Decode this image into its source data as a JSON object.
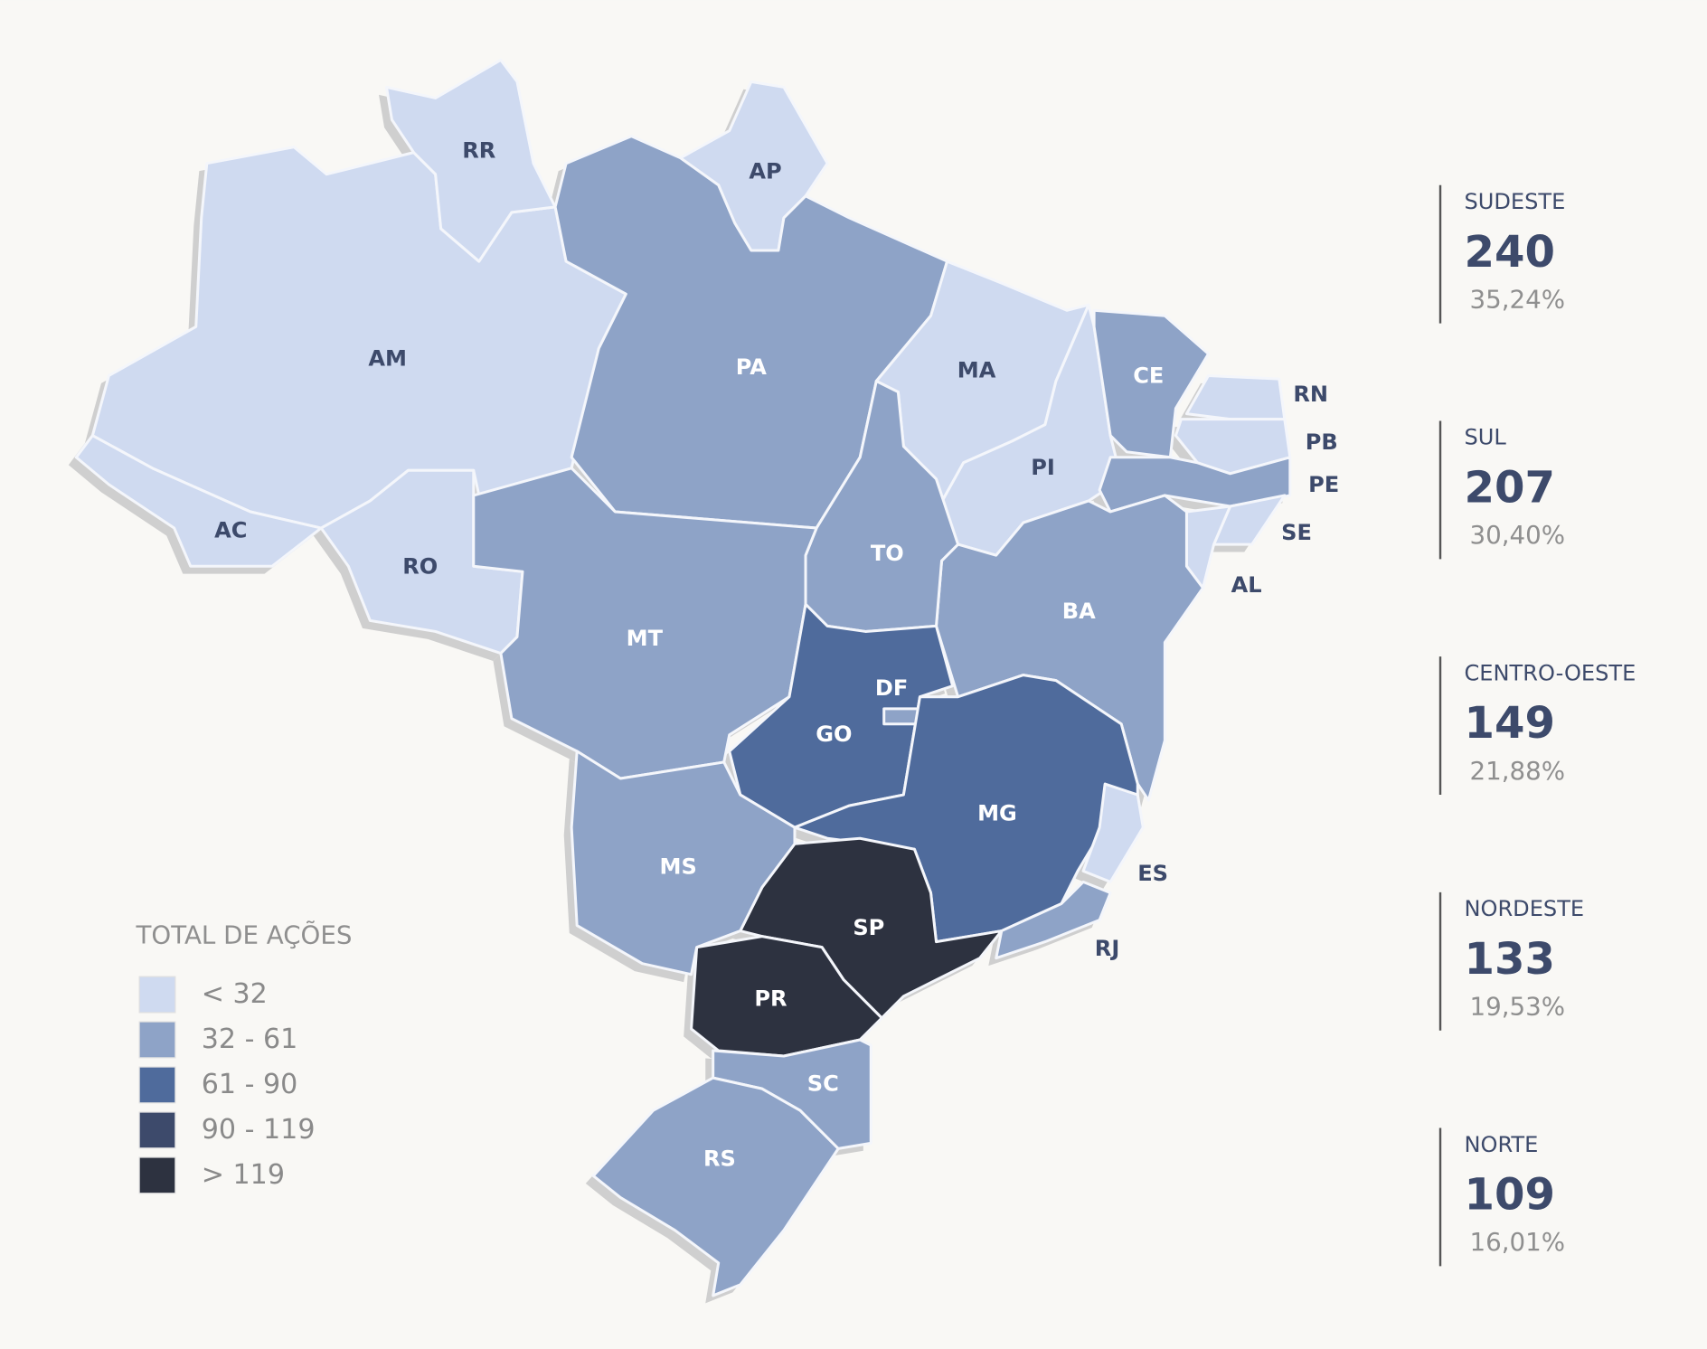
{
  "legend": {
    "title": "TOTAL DE AÇÕES",
    "items": [
      {
        "label": "< 32",
        "color": "#cfdaf0"
      },
      {
        "label": "32 - 61",
        "color": "#8ea3c7"
      },
      {
        "label": "61 - 90",
        "color": "#4f6b9c"
      },
      {
        "label": "90 - 119",
        "color": "#3d4a6b"
      },
      {
        "label": "> 119",
        "color": "#2d3240"
      }
    ]
  },
  "states": [
    {
      "label": "AM",
      "color": "#cfdaf0"
    },
    {
      "label": "AC",
      "color": "#cfdaf0"
    },
    {
      "label": "RO",
      "color": "#cfdaf0"
    },
    {
      "label": "RR",
      "color": "#cfdaf0"
    },
    {
      "label": "AP",
      "color": "#cfdaf0"
    },
    {
      "label": "PA",
      "color": "#8ea3c7"
    },
    {
      "label": "MA",
      "color": "#cfdaf0"
    },
    {
      "label": "PI",
      "color": "#cfdaf0"
    },
    {
      "label": "CE",
      "color": "#8ea3c7"
    },
    {
      "label": "RN",
      "color": "#cfdaf0"
    },
    {
      "label": "PB",
      "color": "#cfdaf0"
    },
    {
      "label": "PE",
      "color": "#8ea3c7"
    },
    {
      "label": "AL",
      "color": "#cfdaf0"
    },
    {
      "label": "SE",
      "color": "#cfdaf0"
    },
    {
      "label": "BA",
      "color": "#8ea3c7"
    },
    {
      "label": "TO",
      "color": "#8ea3c7"
    },
    {
      "label": "MT",
      "color": "#8ea3c7"
    },
    {
      "label": "GO",
      "color": "#4f6b9c"
    },
    {
      "label": "DF",
      "color": "#8ea3c7"
    },
    {
      "label": "MG",
      "color": "#4f6b9c"
    },
    {
      "label": "ES",
      "color": "#cfdaf0"
    },
    {
      "label": "RJ",
      "color": "#8ea3c7"
    },
    {
      "label": "SP",
      "color": "#2d3240"
    },
    {
      "label": "PR",
      "color": "#2d3240"
    },
    {
      "label": "SC",
      "color": "#8ea3c7"
    },
    {
      "label": "MS",
      "color": "#8ea3c7"
    },
    {
      "label": "RS",
      "color": "#8ea3c7"
    }
  ],
  "regions": [
    {
      "name": "SUDESTE",
      "total": "240",
      "share": "35,24%"
    },
    {
      "name": "SUL",
      "total": "207",
      "share": "30,40%"
    },
    {
      "name": "CENTRO-OESTE",
      "total": "149",
      "share": "21,88%"
    },
    {
      "name": "NORDESTE",
      "total": "133",
      "share": "19,53%"
    },
    {
      "name": "NORTE",
      "total": "109",
      "share": "16,01%"
    }
  ]
}
